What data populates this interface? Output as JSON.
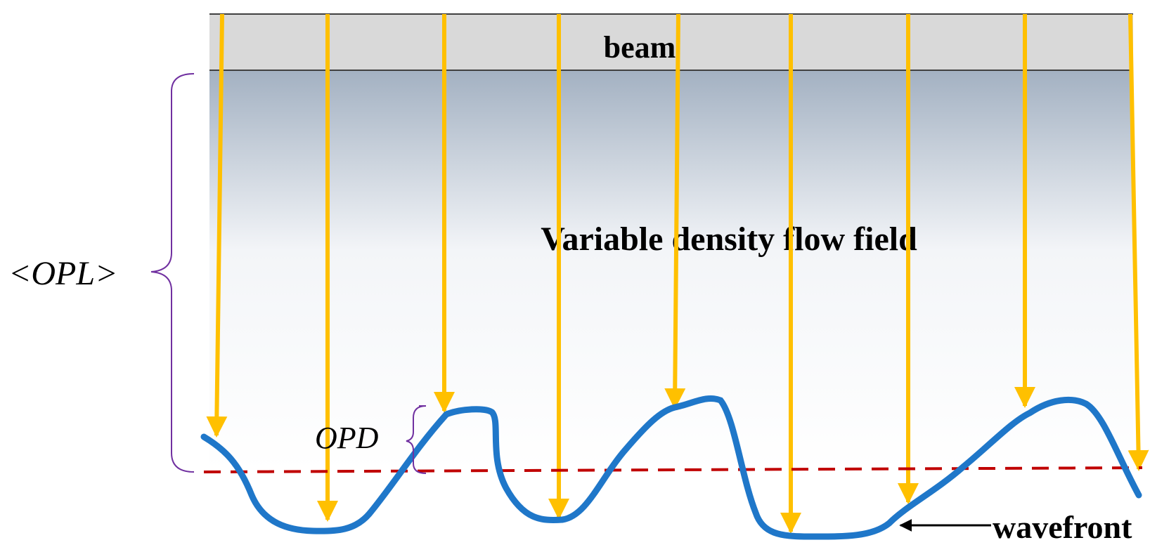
{
  "labels": {
    "beam": "beam",
    "flow_field": "Variable density flow field",
    "opl": "<OPL>",
    "opd": "OPD",
    "wavefront": "wavefront"
  },
  "colors": {
    "beam_fill": "#d9d9d9",
    "field_top": "#a3b1c2",
    "field_bottom": "#ffffff",
    "ray": "#ffc000",
    "wavefront": "#1f77c9",
    "reference_line": "#c00000",
    "brace": "#7030a0",
    "text": "#000000"
  },
  "rays_count": 9
}
